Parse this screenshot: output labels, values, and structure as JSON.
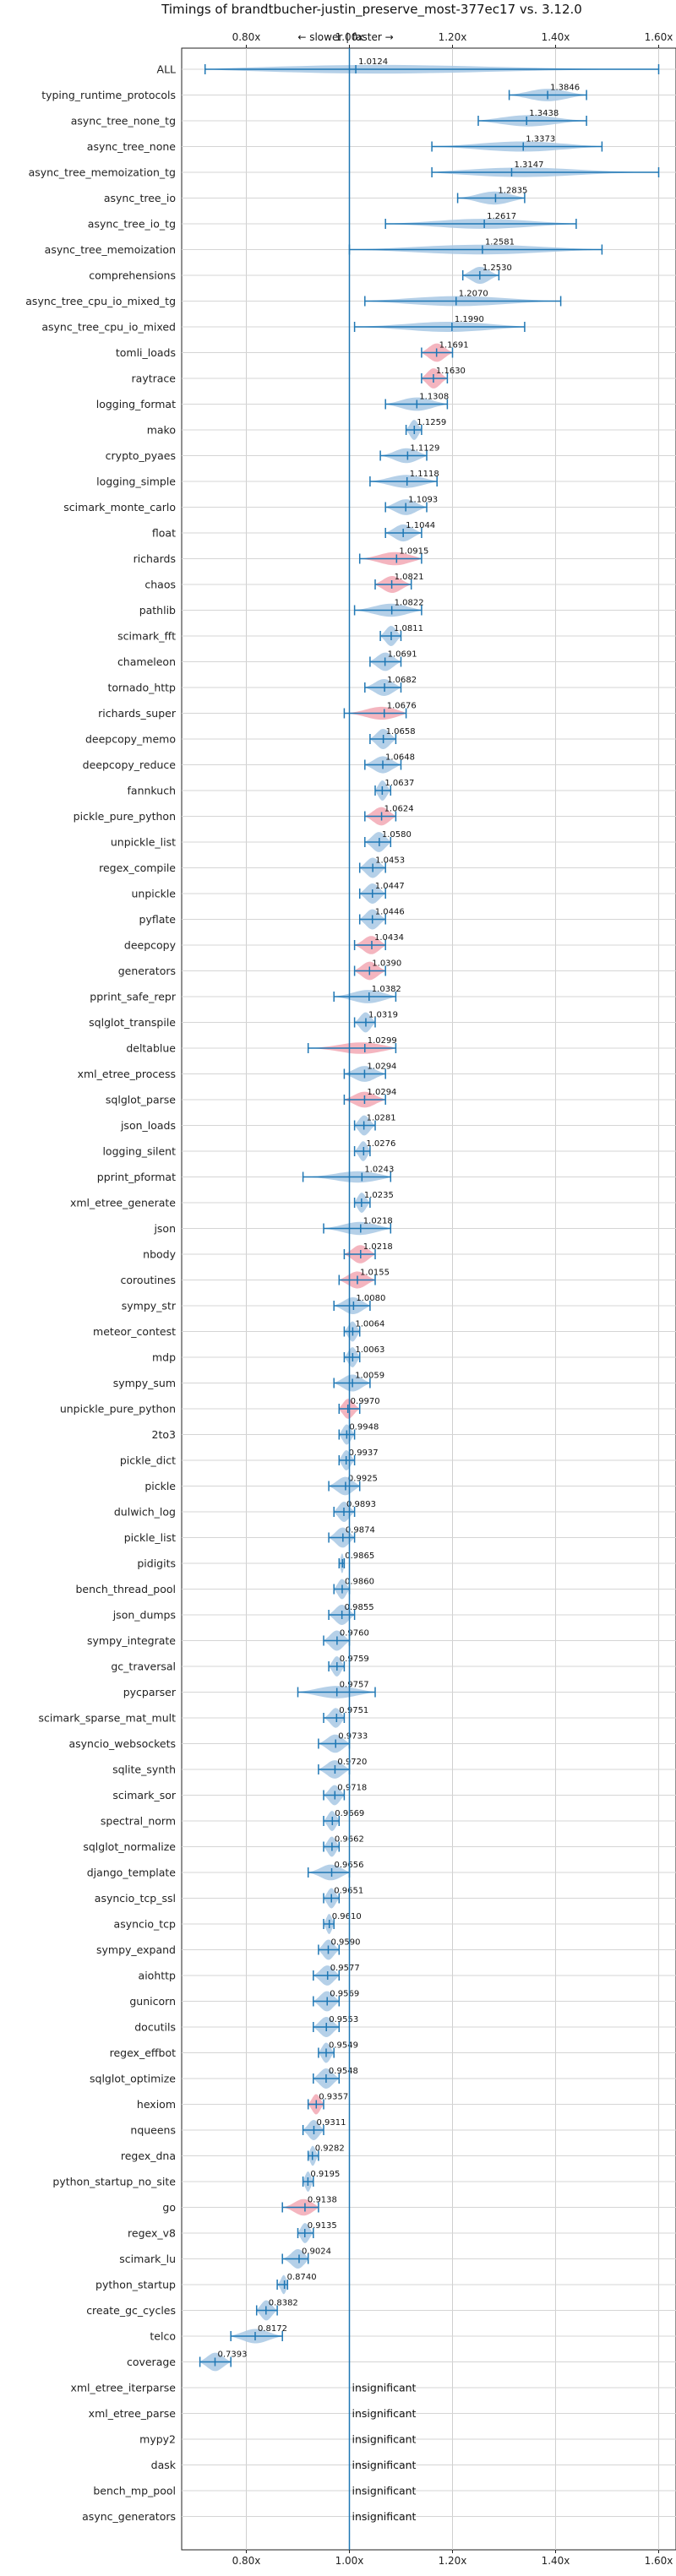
{
  "chart_data": {
    "type": "violin",
    "title": "Timings of brandtbucher-justin_preserve_most-377ec17 vs. 3.12.0",
    "direction_label": "← slower | faster →",
    "x_ticks": [
      "0.80x",
      "1.00x",
      "1.20x",
      "1.40x",
      "1.60x"
    ],
    "x_tick_values": [
      0.8,
      1.0,
      1.2,
      1.4,
      1.6
    ],
    "xlim": [
      0.68,
      1.66
    ],
    "reference_line": 1.0,
    "grid": true,
    "colors": {
      "faster": "#a8c8e4",
      "slower": "#f2a8b4",
      "line": "#1f77b4"
    },
    "insignificant_text": "insignificant",
    "benchmarks": [
      {
        "name": "ALL",
        "label": "1.0124",
        "mean": 1.0124,
        "lo": 0.72,
        "hi": 1.6,
        "color": "faster"
      },
      {
        "name": "typing_runtime_protocols",
        "label": "1.3846",
        "mean": 1.3846,
        "lo": 1.31,
        "hi": 1.46,
        "color": "faster"
      },
      {
        "name": "async_tree_none_tg",
        "label": "1.3438",
        "mean": 1.3438,
        "lo": 1.25,
        "hi": 1.46,
        "color": "faster"
      },
      {
        "name": "async_tree_none",
        "label": "1.3373",
        "mean": 1.3373,
        "lo": 1.16,
        "hi": 1.49,
        "color": "faster"
      },
      {
        "name": "async_tree_memoization_tg",
        "label": "1.3147",
        "mean": 1.3147,
        "lo": 1.16,
        "hi": 1.6,
        "color": "faster"
      },
      {
        "name": "async_tree_io",
        "label": "1.2835",
        "mean": 1.2835,
        "lo": 1.21,
        "hi": 1.34,
        "color": "faster"
      },
      {
        "name": "async_tree_io_tg",
        "label": "1.2617",
        "mean": 1.2617,
        "lo": 1.07,
        "hi": 1.44,
        "color": "faster"
      },
      {
        "name": "async_tree_memoization",
        "label": "1.2581",
        "mean": 1.2581,
        "lo": 1.0,
        "hi": 1.49,
        "color": "faster"
      },
      {
        "name": "comprehensions",
        "label": "1.2530",
        "mean": 1.253,
        "lo": 1.22,
        "hi": 1.29,
        "color": "faster"
      },
      {
        "name": "async_tree_cpu_io_mixed_tg",
        "label": "1.2070",
        "mean": 1.207,
        "lo": 1.03,
        "hi": 1.41,
        "color": "faster"
      },
      {
        "name": "async_tree_cpu_io_mixed",
        "label": "1.1990",
        "mean": 1.199,
        "lo": 1.01,
        "hi": 1.34,
        "color": "faster"
      },
      {
        "name": "tomli_loads",
        "label": "1.1691",
        "mean": 1.1691,
        "lo": 1.14,
        "hi": 1.2,
        "color": "slower"
      },
      {
        "name": "raytrace",
        "label": "1.1630",
        "mean": 1.163,
        "lo": 1.14,
        "hi": 1.19,
        "color": "slower"
      },
      {
        "name": "logging_format",
        "label": "1.1308",
        "mean": 1.1308,
        "lo": 1.07,
        "hi": 1.19,
        "color": "faster"
      },
      {
        "name": "mako",
        "label": "1.1259",
        "mean": 1.1259,
        "lo": 1.11,
        "hi": 1.14,
        "color": "faster"
      },
      {
        "name": "crypto_pyaes",
        "label": "1.1129",
        "mean": 1.1129,
        "lo": 1.06,
        "hi": 1.15,
        "color": "faster"
      },
      {
        "name": "logging_simple",
        "label": "1.1118",
        "mean": 1.1118,
        "lo": 1.04,
        "hi": 1.17,
        "color": "faster"
      },
      {
        "name": "scimark_monte_carlo",
        "label": "1.1093",
        "mean": 1.1093,
        "lo": 1.07,
        "hi": 1.15,
        "color": "faster"
      },
      {
        "name": "float",
        "label": "1.1044",
        "mean": 1.1044,
        "lo": 1.07,
        "hi": 1.14,
        "color": "faster"
      },
      {
        "name": "richards",
        "label": "1.0915",
        "mean": 1.0915,
        "lo": 1.02,
        "hi": 1.14,
        "color": "slower"
      },
      {
        "name": "chaos",
        "label": "1.0821",
        "mean": 1.0821,
        "lo": 1.05,
        "hi": 1.12,
        "color": "slower"
      },
      {
        "name": "pathlib",
        "label": "1.0822",
        "mean": 1.0822,
        "lo": 1.01,
        "hi": 1.14,
        "color": "faster"
      },
      {
        "name": "scimark_fft",
        "label": "1.0811",
        "mean": 1.0811,
        "lo": 1.06,
        "hi": 1.1,
        "color": "faster"
      },
      {
        "name": "chameleon",
        "label": "1.0691",
        "mean": 1.0691,
        "lo": 1.04,
        "hi": 1.1,
        "color": "faster"
      },
      {
        "name": "tornado_http",
        "label": "1.0682",
        "mean": 1.0682,
        "lo": 1.03,
        "hi": 1.1,
        "color": "faster"
      },
      {
        "name": "richards_super",
        "label": "1.0676",
        "mean": 1.0676,
        "lo": 0.99,
        "hi": 1.11,
        "color": "slower"
      },
      {
        "name": "deepcopy_memo",
        "label": "1.0658",
        "mean": 1.0658,
        "lo": 1.04,
        "hi": 1.09,
        "color": "faster"
      },
      {
        "name": "deepcopy_reduce",
        "label": "1.0648",
        "mean": 1.0648,
        "lo": 1.03,
        "hi": 1.1,
        "color": "faster"
      },
      {
        "name": "fannkuch",
        "label": "1.0637",
        "mean": 1.0637,
        "lo": 1.05,
        "hi": 1.08,
        "color": "faster"
      },
      {
        "name": "pickle_pure_python",
        "label": "1.0624",
        "mean": 1.0624,
        "lo": 1.03,
        "hi": 1.09,
        "color": "slower"
      },
      {
        "name": "unpickle_list",
        "label": "1.0580",
        "mean": 1.058,
        "lo": 1.03,
        "hi": 1.08,
        "color": "faster"
      },
      {
        "name": "regex_compile",
        "label": "1.0453",
        "mean": 1.0453,
        "lo": 1.02,
        "hi": 1.07,
        "color": "faster"
      },
      {
        "name": "unpickle",
        "label": "1.0447",
        "mean": 1.0447,
        "lo": 1.02,
        "hi": 1.07,
        "color": "faster"
      },
      {
        "name": "pyflate",
        "label": "1.0446",
        "mean": 1.0446,
        "lo": 1.02,
        "hi": 1.07,
        "color": "faster"
      },
      {
        "name": "deepcopy",
        "label": "1.0434",
        "mean": 1.0434,
        "lo": 1.01,
        "hi": 1.07,
        "color": "slower"
      },
      {
        "name": "generators",
        "label": "1.0390",
        "mean": 1.039,
        "lo": 1.01,
        "hi": 1.07,
        "color": "slower"
      },
      {
        "name": "pprint_safe_repr",
        "label": "1.0382",
        "mean": 1.0382,
        "lo": 0.97,
        "hi": 1.09,
        "color": "faster"
      },
      {
        "name": "sqlglot_transpile",
        "label": "1.0319",
        "mean": 1.0319,
        "lo": 1.01,
        "hi": 1.05,
        "color": "faster"
      },
      {
        "name": "deltablue",
        "label": "1.0299",
        "mean": 1.0299,
        "lo": 0.92,
        "hi": 1.09,
        "color": "slower"
      },
      {
        "name": "xml_etree_process",
        "label": "1.0294",
        "mean": 1.0294,
        "lo": 0.99,
        "hi": 1.07,
        "color": "faster"
      },
      {
        "name": "sqlglot_parse",
        "label": "1.0294",
        "mean": 1.0294,
        "lo": 0.99,
        "hi": 1.07,
        "color": "slower"
      },
      {
        "name": "json_loads",
        "label": "1.0281",
        "mean": 1.0281,
        "lo": 1.01,
        "hi": 1.05,
        "color": "faster"
      },
      {
        "name": "logging_silent",
        "label": "1.0276",
        "mean": 1.0276,
        "lo": 1.01,
        "hi": 1.04,
        "color": "faster"
      },
      {
        "name": "pprint_pformat",
        "label": "1.0243",
        "mean": 1.0243,
        "lo": 0.91,
        "hi": 1.08,
        "color": "faster"
      },
      {
        "name": "xml_etree_generate",
        "label": "1.0235",
        "mean": 1.0235,
        "lo": 1.01,
        "hi": 1.04,
        "color": "faster"
      },
      {
        "name": "json",
        "label": "1.0218",
        "mean": 1.0218,
        "lo": 0.95,
        "hi": 1.08,
        "color": "faster"
      },
      {
        "name": "nbody",
        "label": "1.0218",
        "mean": 1.0218,
        "lo": 0.99,
        "hi": 1.05,
        "color": "slower"
      },
      {
        "name": "coroutines",
        "label": "1.0155",
        "mean": 1.0155,
        "lo": 0.98,
        "hi": 1.05,
        "color": "slower"
      },
      {
        "name": "sympy_str",
        "label": "1.0080",
        "mean": 1.008,
        "lo": 0.97,
        "hi": 1.04,
        "color": "faster"
      },
      {
        "name": "meteor_contest",
        "label": "1.0064",
        "mean": 1.0064,
        "lo": 0.99,
        "hi": 1.02,
        "color": "faster"
      },
      {
        "name": "mdp",
        "label": "1.0063",
        "mean": 1.0063,
        "lo": 0.99,
        "hi": 1.02,
        "color": "faster"
      },
      {
        "name": "sympy_sum",
        "label": "1.0059",
        "mean": 1.0059,
        "lo": 0.97,
        "hi": 1.04,
        "color": "faster"
      },
      {
        "name": "unpickle_pure_python",
        "label": "0.9970",
        "mean": 0.997,
        "lo": 0.98,
        "hi": 1.02,
        "color": "slower"
      },
      {
        "name": "2to3",
        "label": "0.9948",
        "mean": 0.9948,
        "lo": 0.98,
        "hi": 1.01,
        "color": "faster"
      },
      {
        "name": "pickle_dict",
        "label": "0.9937",
        "mean": 0.9937,
        "lo": 0.98,
        "hi": 1.01,
        "color": "faster"
      },
      {
        "name": "pickle",
        "label": "0.9925",
        "mean": 0.9925,
        "lo": 0.96,
        "hi": 1.02,
        "color": "faster"
      },
      {
        "name": "dulwich_log",
        "label": "0.9893",
        "mean": 0.9893,
        "lo": 0.97,
        "hi": 1.01,
        "color": "faster"
      },
      {
        "name": "pickle_list",
        "label": "0.9874",
        "mean": 0.9874,
        "lo": 0.96,
        "hi": 1.01,
        "color": "faster"
      },
      {
        "name": "pidigits",
        "label": "0.9865",
        "mean": 0.9865,
        "lo": 0.98,
        "hi": 0.99,
        "color": "faster"
      },
      {
        "name": "bench_thread_pool",
        "label": "0.9860",
        "mean": 0.986,
        "lo": 0.97,
        "hi": 1.0,
        "color": "faster"
      },
      {
        "name": "json_dumps",
        "label": "0.9855",
        "mean": 0.9855,
        "lo": 0.96,
        "hi": 1.01,
        "color": "faster"
      },
      {
        "name": "sympy_integrate",
        "label": "0.9760",
        "mean": 0.976,
        "lo": 0.95,
        "hi": 1.0,
        "color": "faster"
      },
      {
        "name": "gc_traversal",
        "label": "0.9759",
        "mean": 0.9759,
        "lo": 0.96,
        "hi": 0.99,
        "color": "faster"
      },
      {
        "name": "pycparser",
        "label": "0.9757",
        "mean": 0.9757,
        "lo": 0.9,
        "hi": 1.05,
        "color": "faster"
      },
      {
        "name": "scimark_sparse_mat_mult",
        "label": "0.9751",
        "mean": 0.9751,
        "lo": 0.95,
        "hi": 0.99,
        "color": "faster"
      },
      {
        "name": "asyncio_websockets",
        "label": "0.9733",
        "mean": 0.9733,
        "lo": 0.94,
        "hi": 1.0,
        "color": "faster"
      },
      {
        "name": "sqlite_synth",
        "label": "0.9720",
        "mean": 0.972,
        "lo": 0.94,
        "hi": 1.0,
        "color": "faster"
      },
      {
        "name": "scimark_sor",
        "label": "0.9718",
        "mean": 0.9718,
        "lo": 0.95,
        "hi": 0.99,
        "color": "faster"
      },
      {
        "name": "spectral_norm",
        "label": "0.9669",
        "mean": 0.9669,
        "lo": 0.95,
        "hi": 0.98,
        "color": "faster"
      },
      {
        "name": "sqlglot_normalize",
        "label": "0.9662",
        "mean": 0.9662,
        "lo": 0.95,
        "hi": 0.98,
        "color": "faster"
      },
      {
        "name": "django_template",
        "label": "0.9656",
        "mean": 0.9656,
        "lo": 0.92,
        "hi": 1.0,
        "color": "faster"
      },
      {
        "name": "asyncio_tcp_ssl",
        "label": "0.9651",
        "mean": 0.9651,
        "lo": 0.95,
        "hi": 0.98,
        "color": "faster"
      },
      {
        "name": "asyncio_tcp",
        "label": "0.9610",
        "mean": 0.961,
        "lo": 0.95,
        "hi": 0.97,
        "color": "faster"
      },
      {
        "name": "sympy_expand",
        "label": "0.9590",
        "mean": 0.959,
        "lo": 0.94,
        "hi": 0.98,
        "color": "faster"
      },
      {
        "name": "aiohttp",
        "label": "0.9577",
        "mean": 0.9577,
        "lo": 0.93,
        "hi": 0.98,
        "color": "faster"
      },
      {
        "name": "gunicorn",
        "label": "0.9569",
        "mean": 0.9569,
        "lo": 0.93,
        "hi": 0.98,
        "color": "faster"
      },
      {
        "name": "docutils",
        "label": "0.9553",
        "mean": 0.9553,
        "lo": 0.93,
        "hi": 0.98,
        "color": "faster"
      },
      {
        "name": "regex_effbot",
        "label": "0.9549",
        "mean": 0.9549,
        "lo": 0.94,
        "hi": 0.97,
        "color": "faster"
      },
      {
        "name": "sqlglot_optimize",
        "label": "0.9548",
        "mean": 0.9548,
        "lo": 0.93,
        "hi": 0.98,
        "color": "faster"
      },
      {
        "name": "hexiom",
        "label": "0.9357",
        "mean": 0.9357,
        "lo": 0.92,
        "hi": 0.95,
        "color": "slower"
      },
      {
        "name": "nqueens",
        "label": "0.9311",
        "mean": 0.9311,
        "lo": 0.91,
        "hi": 0.95,
        "color": "faster"
      },
      {
        "name": "regex_dna",
        "label": "0.9282",
        "mean": 0.9282,
        "lo": 0.92,
        "hi": 0.94,
        "color": "faster"
      },
      {
        "name": "python_startup_no_site",
        "label": "0.9195",
        "mean": 0.9195,
        "lo": 0.91,
        "hi": 0.93,
        "color": "faster"
      },
      {
        "name": "go",
        "label": "0.9138",
        "mean": 0.9138,
        "lo": 0.87,
        "hi": 0.94,
        "color": "slower"
      },
      {
        "name": "regex_v8",
        "label": "0.9135",
        "mean": 0.9135,
        "lo": 0.9,
        "hi": 0.93,
        "color": "faster"
      },
      {
        "name": "scimark_lu",
        "label": "0.9024",
        "mean": 0.9024,
        "lo": 0.87,
        "hi": 0.92,
        "color": "faster"
      },
      {
        "name": "python_startup",
        "label": "0.8740",
        "mean": 0.874,
        "lo": 0.86,
        "hi": 0.88,
        "color": "faster"
      },
      {
        "name": "create_gc_cycles",
        "label": "0.8382",
        "mean": 0.8382,
        "lo": 0.82,
        "hi": 0.86,
        "color": "faster"
      },
      {
        "name": "telco",
        "label": "0.8172",
        "mean": 0.8172,
        "lo": 0.77,
        "hi": 0.87,
        "color": "faster"
      },
      {
        "name": "coverage",
        "label": "0.7393",
        "mean": 0.7393,
        "lo": 0.71,
        "hi": 0.77,
        "color": "faster"
      },
      {
        "name": "xml_etree_iterparse",
        "label": "",
        "insignificant": true
      },
      {
        "name": "xml_etree_parse",
        "label": "",
        "insignificant": true
      },
      {
        "name": "mypy2",
        "label": "",
        "insignificant": true
      },
      {
        "name": "dask",
        "label": "",
        "insignificant": true
      },
      {
        "name": "bench_mp_pool",
        "label": "",
        "insignificant": true
      },
      {
        "name": "async_generators",
        "label": "",
        "insignificant": true
      }
    ]
  }
}
